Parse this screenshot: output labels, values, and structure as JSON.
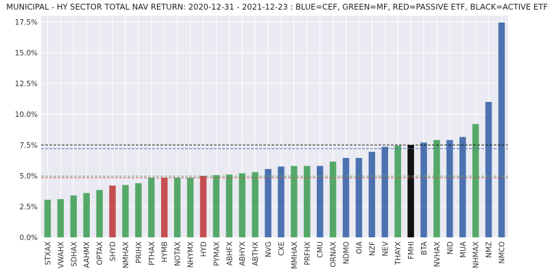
{
  "chart_data": {
    "type": "bar",
    "title": "MUNICIPAL - HY SECTOR TOTAL NAV RETURN: 2020-12-31 - 2021-12-23 : BLUE=CEF, GREEN=MF, RED=PASSIVE ETF, BLACK=ACTIVE ETF",
    "xlabel": "",
    "ylabel": "",
    "ylim": [
      0,
      18.0
    ],
    "y_ticks": [
      0,
      2.5,
      5.0,
      7.5,
      10.0,
      12.5,
      15.0,
      17.5
    ],
    "y_tick_labels": [
      "0.0%",
      "2.5%",
      "5.0%",
      "7.5%",
      "10.0%",
      "12.5%",
      "15.0%",
      "17.5%"
    ],
    "grid": true,
    "legend": "none",
    "colors": {
      "CEF": "#4c72b0",
      "MF": "#55a868",
      "PASSIVE ETF": "#c44e52",
      "ACTIVE ETF": "#111111"
    },
    "categories": [
      "STXAX",
      "VWAHX",
      "SDHAX",
      "AAHMX",
      "OPTAX",
      "SHYD",
      "NMHAX",
      "PRIHX",
      "PTHAX",
      "HYMB",
      "NOTAX",
      "NHYMX",
      "HYD",
      "PYMAX",
      "ABHFX",
      "ABHYX",
      "ABTHX",
      "NVG",
      "CXE",
      "MMHAX",
      "PRFHX",
      "CMU",
      "ORNAX",
      "NDMO",
      "OIA",
      "NZF",
      "NEV",
      "THAYX",
      "FMHI",
      "BTA",
      "NVHAX",
      "NID",
      "MUA",
      "NHMAX",
      "NMZ",
      "NMCO"
    ],
    "values": [
      3.05,
      3.1,
      3.4,
      3.6,
      3.85,
      4.2,
      4.25,
      4.4,
      4.85,
      4.85,
      4.85,
      4.85,
      5.0,
      5.05,
      5.1,
      5.2,
      5.3,
      5.55,
      5.75,
      5.8,
      5.8,
      5.8,
      6.15,
      6.45,
      6.45,
      6.95,
      7.35,
      7.45,
      7.5,
      7.7,
      7.9,
      7.9,
      8.15,
      9.2,
      11.0,
      17.45
    ],
    "types": [
      "MF",
      "MF",
      "MF",
      "MF",
      "MF",
      "PASSIVE ETF",
      "MF",
      "MF",
      "MF",
      "PASSIVE ETF",
      "MF",
      "MF",
      "PASSIVE ETF",
      "MF",
      "MF",
      "MF",
      "MF",
      "CEF",
      "CEF",
      "MF",
      "MF",
      "CEF",
      "MF",
      "CEF",
      "CEF",
      "CEF",
      "CEF",
      "MF",
      "ACTIVE ETF",
      "CEF",
      "MF",
      "CEF",
      "CEF",
      "MF",
      "CEF",
      "CEF"
    ],
    "reference_lines": [
      {
        "group": "ACTIVE ETF",
        "value": 7.5,
        "color": "#111111"
      },
      {
        "group": "CEF",
        "value": 7.2,
        "color": "#4c72b0"
      },
      {
        "group": "MF",
        "value": 4.98,
        "color": "#55a868"
      },
      {
        "group": "PASSIVE ETF",
        "value": 4.83,
        "color": "#c44e52"
      }
    ]
  }
}
